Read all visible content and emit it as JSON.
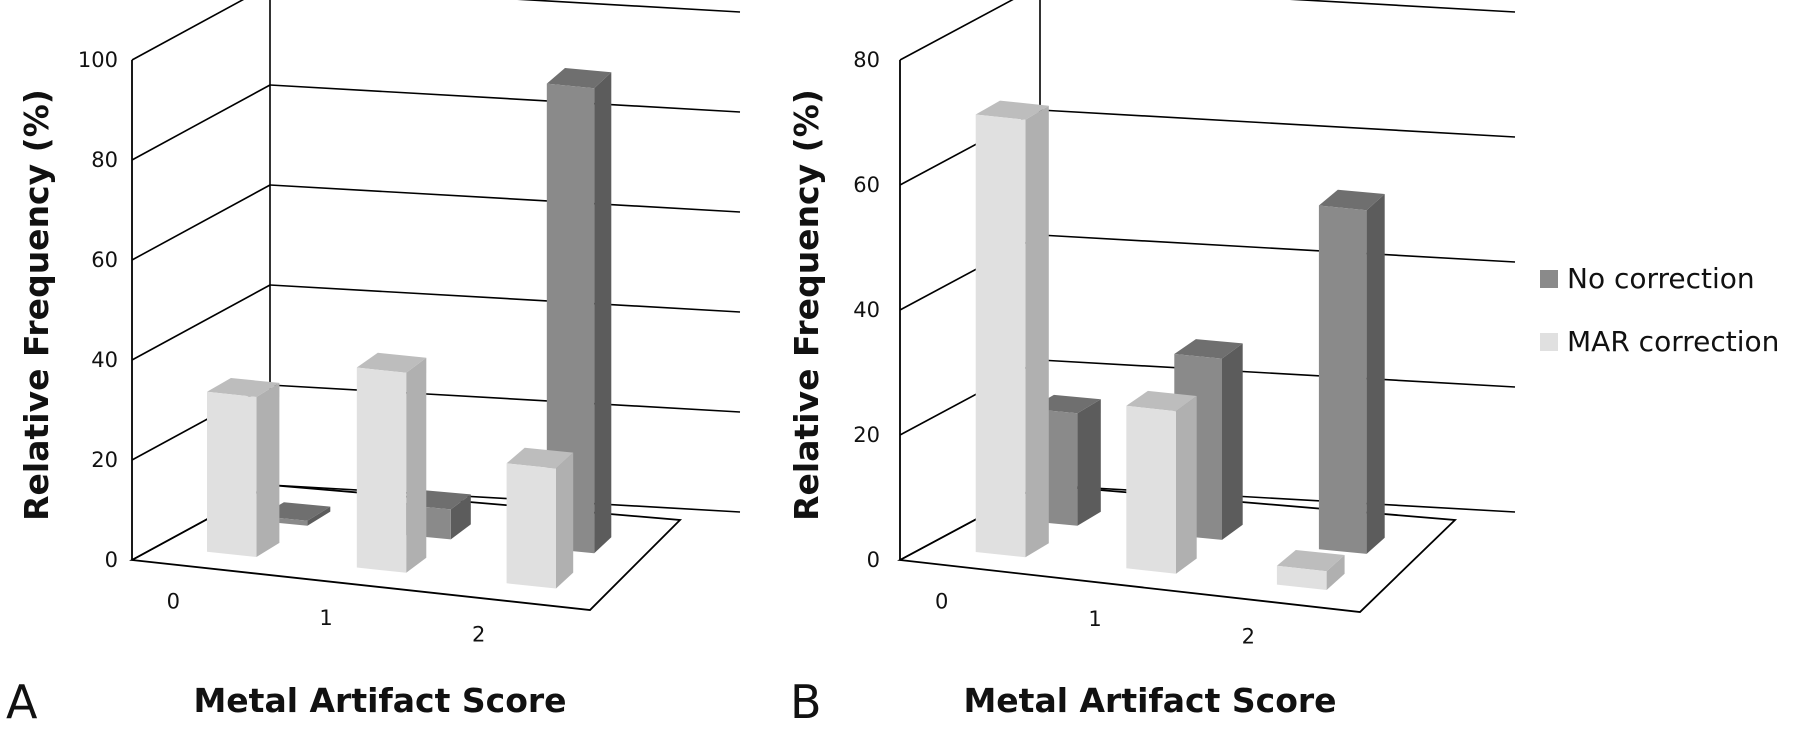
{
  "colors": {
    "no_correction": {
      "front": "#8a8a8a",
      "top": "#6f6f6f",
      "side": "#5c5c5c"
    },
    "mar_correction": {
      "front": "#e0e0e0",
      "top": "#bdbdbd",
      "side": "#b0b0b0"
    }
  },
  "legend": {
    "placement": "right",
    "items": [
      {
        "label": "No correction",
        "color_key": "no_correction"
      },
      {
        "label": "MAR correction",
        "color_key": "mar_correction"
      }
    ]
  },
  "chart_data": [
    {
      "type": "bar",
      "panel": "A",
      "title": "",
      "xlabel": "Metal Artifact Score",
      "ylabel": "Relative Frequency (%)",
      "categories": [
        "0",
        "1",
        "2"
      ],
      "ylim": [
        0,
        100
      ],
      "yticks": [
        0,
        20,
        40,
        60,
        80,
        100
      ],
      "series": [
        {
          "name": "No correction",
          "values": [
            1,
            6,
            93
          ]
        },
        {
          "name": "MAR correction",
          "values": [
            32,
            40,
            24
          ]
        }
      ]
    },
    {
      "type": "bar",
      "panel": "B",
      "title": "",
      "xlabel": "Metal Artifact Score",
      "ylabel": "Relative Frequency (%)",
      "categories": [
        "0",
        "1",
        "2"
      ],
      "ylim": [
        0,
        80
      ],
      "yticks": [
        0,
        20,
        40,
        60,
        80
      ],
      "series": [
        {
          "name": "No correction",
          "values": [
            18,
            29,
            55
          ]
        },
        {
          "name": "MAR correction",
          "values": [
            70,
            26,
            3
          ]
        }
      ]
    }
  ]
}
